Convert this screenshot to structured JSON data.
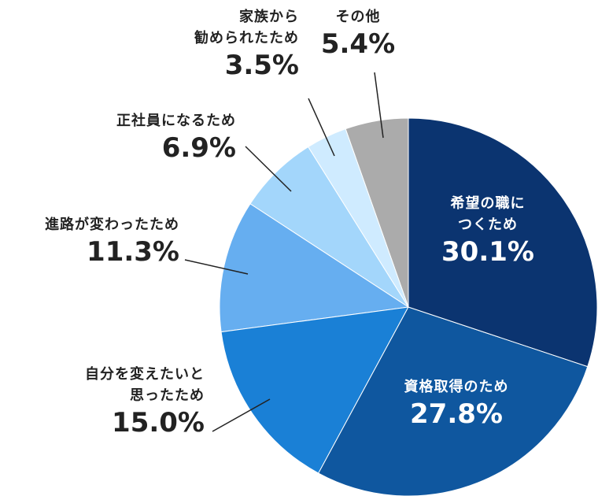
{
  "chart_data": {
    "type": "pie",
    "categories": [
      "希望の職に\nつくため",
      "資格取得のため",
      "自分を変えたいと\n思ったため",
      "進路が変わったため",
      "正社員になるため",
      "家族から\n勧められたため",
      "その他"
    ],
    "values": [
      30.1,
      27.8,
      15.0,
      11.3,
      6.9,
      3.5,
      5.4
    ],
    "value_labels": [
      "30.1%",
      "27.8%",
      "15.0%",
      "11.3%",
      "6.9%",
      "3.5%",
      "5.4%"
    ],
    "colors": [
      "#0b3470",
      "#0f579f",
      "#1a80d6",
      "#66aef0",
      "#a3d6fb",
      "#cfebff",
      "#ababab"
    ]
  }
}
